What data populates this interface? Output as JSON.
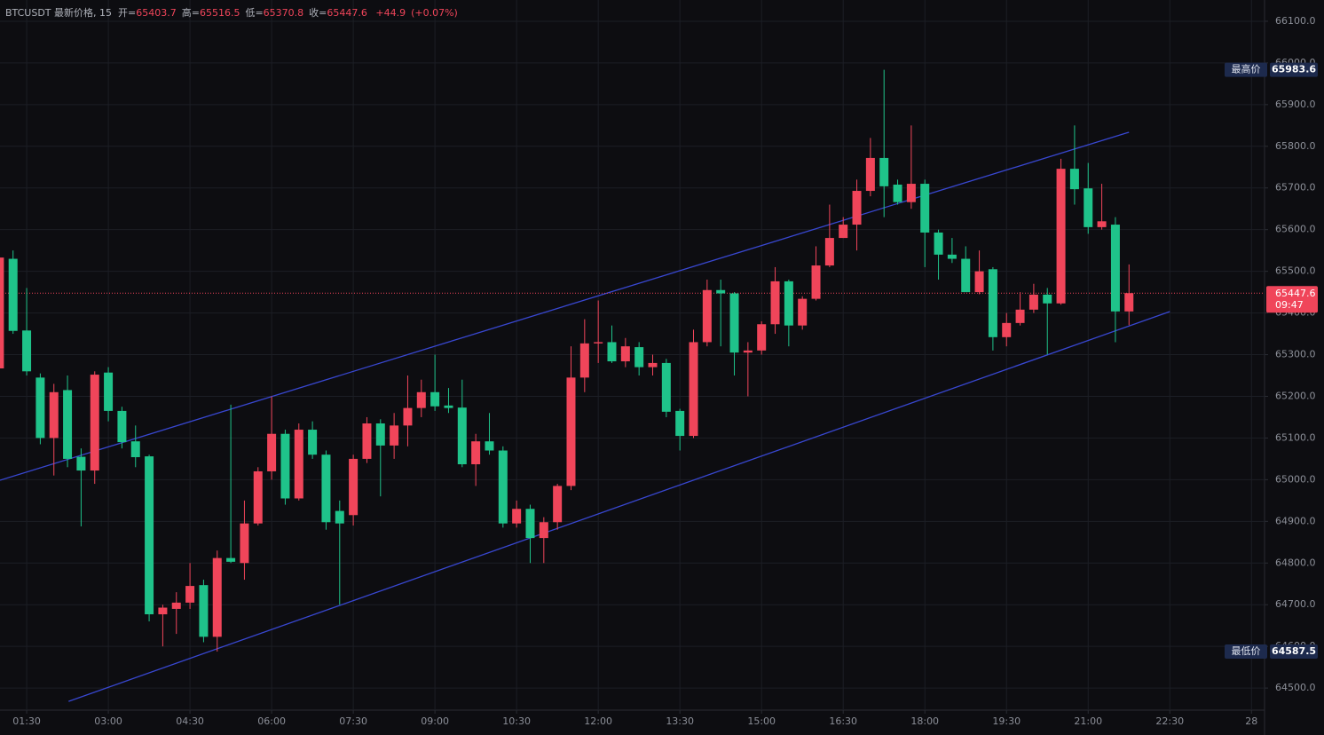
{
  "chart_data": {
    "type": "candlestick",
    "header": {
      "symbol": "BTCUSDT 最新价格, 15",
      "ohlc": [
        {
          "label": "开=",
          "value": 65403.7
        },
        {
          "label": "高=",
          "value": 65516.5
        },
        {
          "label": "低=",
          "value": 65370.8
        },
        {
          "label": "收=",
          "value": 65447.6
        }
      ],
      "change": {
        "value": 44.9,
        "label": "+44.9"
      },
      "change_pct": {
        "value": 0.07,
        "label": "(+0.07%)"
      }
    },
    "up_color": "#f0455a",
    "down_color": "#1fc38a",
    "x": [
      1,
      1.25,
      1.5,
      1.75,
      2,
      2.25,
      2.5,
      2.75,
      3,
      3.25,
      3.5,
      3.75,
      4,
      4.25,
      4.5,
      4.75,
      5,
      5.25,
      5.5,
      5.75,
      6,
      6.25,
      6.5,
      6.75,
      7,
      7.25,
      7.5,
      7.75,
      8,
      8.25,
      8.5,
      8.75,
      9,
      9.25,
      9.5,
      9.75,
      10,
      10.25,
      10.5,
      10.75,
      11,
      11.25,
      11.5,
      11.75,
      12,
      12.25,
      12.5,
      12.75,
      13,
      13.25,
      13.5,
      13.75,
      14,
      14.25,
      14.5,
      14.75,
      15,
      15.25,
      15.5,
      15.75,
      16,
      16.25,
      16.5,
      16.75,
      17,
      17.25,
      17.5,
      17.75,
      18,
      18.25,
      18.5,
      18.75,
      19,
      19.25,
      19.5,
      19.75,
      20,
      20.25,
      20.5,
      20.75,
      21,
      21.25,
      21.5,
      21.75
    ],
    "open": [
      65267,
      65530,
      65358,
      65245,
      65100,
      65215,
      65055,
      65022,
      65257,
      65165,
      65092,
      65056,
      64677,
      64690,
      64705,
      64747,
      64623,
      64812,
      64800,
      64895,
      65020,
      65110,
      64955,
      65120,
      65060,
      64925,
      64915,
      65050,
      65135,
      65082,
      65130,
      65172,
      65210,
      65178,
      65173,
      65037,
      65092,
      65070,
      64895,
      64930,
      64860,
      64898,
      64985,
      65245,
      65327,
      65330,
      65284,
      65318,
      65270,
      65280,
      65165,
      65105,
      65330,
      65455,
      65447,
      65305,
      65310,
      65373,
      65476,
      65370,
      65434,
      65514,
      65580,
      65612,
      65693,
      65772,
      65708,
      65666,
      65710,
      65593,
      65540,
      65530,
      65450,
      65505,
      65342,
      65376,
      65408,
      65444,
      65423,
      65746,
      65699,
      65606,
      65612,
      65403.7
    ],
    "high": [
      65832,
      65550,
      65460,
      65255,
      65230,
      65250,
      65075,
      65260,
      65270,
      65175,
      65130,
      65060,
      64700,
      64730,
      64800,
      64760,
      64830,
      65180,
      64950,
      65030,
      65200,
      65120,
      65135,
      65140,
      65070,
      64950,
      65060,
      65150,
      65145,
      65160,
      65250,
      65240,
      65300,
      65220,
      65240,
      65110,
      65160,
      65080,
      64950,
      64940,
      64910,
      64990,
      65320,
      65385,
      65430,
      65370,
      65340,
      65330,
      65300,
      65290,
      65170,
      65360,
      65480,
      65480,
      65450,
      65330,
      65380,
      65510,
      65480,
      65440,
      65560,
      65660,
      65630,
      65720,
      65820,
      65983.6,
      65720,
      65850,
      65720,
      65600,
      65580,
      65560,
      65550,
      65510,
      65400,
      65450,
      65470,
      65460,
      65770,
      65850,
      65760,
      65710,
      65630,
      65516.5
    ],
    "low": [
      65256,
      65350,
      65250,
      65085,
      65010,
      65030,
      64888,
      64990,
      65140,
      65075,
      65030,
      64660,
      64600,
      64630,
      64690,
      64610,
      64587.5,
      64800,
      64760,
      64890,
      65000,
      64940,
      64950,
      65050,
      64880,
      64700,
      64890,
      65040,
      64960,
      65050,
      65080,
      65150,
      65165,
      65160,
      65030,
      64985,
      65060,
      64885,
      64885,
      64800,
      64800,
      64880,
      64975,
      65210,
      65280,
      65280,
      65270,
      65250,
      65250,
      65150,
      65070,
      65100,
      65320,
      65320,
      65250,
      65200,
      65300,
      65350,
      65320,
      65360,
      65430,
      65510,
      65580,
      65550,
      65680,
      65630,
      65660,
      65650,
      65510,
      65480,
      65520,
      65450,
      65445,
      65310,
      65320,
      65370,
      65400,
      65300,
      65420,
      65660,
      65590,
      65600,
      65330,
      65370.8
    ],
    "close": [
      65533,
      65357,
      65260,
      65100,
      65210,
      65050,
      65022,
      65252,
      65165,
      65090,
      65054,
      64677,
      64693,
      64705,
      64745,
      64623,
      64812,
      64803,
      64895,
      65020,
      65110,
      64955,
      65120,
      65060,
      64898,
      64895,
      65050,
      65135,
      65082,
      65130,
      65172,
      65210,
      65176,
      65172,
      65037,
      65092,
      65070,
      64895,
      64930,
      64860,
      64898,
      64985,
      65245,
      65327,
      65330,
      65284,
      65320,
      65270,
      65280,
      65163,
      65105,
      65330,
      65455,
      65447,
      65305,
      65310,
      65373,
      65476,
      65370,
      65434,
      65514,
      65580,
      65612,
      65693,
      65772,
      65704,
      65666,
      65710,
      65593,
      65540,
      65530,
      65450,
      65500,
      65342,
      65376,
      65408,
      65444,
      65423,
      65746,
      65697,
      65606,
      65620,
      65403.7,
      65447.6
    ],
    "xlim": [
      1.01,
      24.24
    ],
    "xticks": [
      {
        "value": 1.5,
        "label": "01:30"
      },
      {
        "value": 3,
        "label": "03:00"
      },
      {
        "value": 4.5,
        "label": "04:30"
      },
      {
        "value": 6,
        "label": "06:00"
      },
      {
        "value": 7.5,
        "label": "07:30"
      },
      {
        "value": 9,
        "label": "09:00"
      },
      {
        "value": 10.5,
        "label": "10:30"
      },
      {
        "value": 12,
        "label": "12:00"
      },
      {
        "value": 13.5,
        "label": "13:30"
      },
      {
        "value": 15,
        "label": "15:00"
      },
      {
        "value": 16.5,
        "label": "16:30"
      },
      {
        "value": 18,
        "label": "18:00"
      },
      {
        "value": 19.5,
        "label": "19:30"
      },
      {
        "value": 21,
        "label": "21:00"
      },
      {
        "value": 22.5,
        "label": "22:30"
      },
      {
        "value": 24,
        "label": "28"
      }
    ],
    "ylim": [
      64447,
      66151
    ],
    "yticks": [
      {
        "value": 64500,
        "label": "64500.0"
      },
      {
        "value": 64600,
        "label": "64600.0"
      },
      {
        "value": 64700,
        "label": "64700.0"
      },
      {
        "value": 64800,
        "label": "64800.0"
      },
      {
        "value": 64900,
        "label": "64900.0"
      },
      {
        "value": 65000,
        "label": "65000.0"
      },
      {
        "value": 65100,
        "label": "65100.0"
      },
      {
        "value": 65200,
        "label": "65200.0"
      },
      {
        "value": 65300,
        "label": "65300.0"
      },
      {
        "value": 65400,
        "label": "65400.0"
      },
      {
        "value": 65500,
        "label": "65500.0"
      },
      {
        "value": 65600,
        "label": "65600.0"
      },
      {
        "value": 65700,
        "label": "65700.0"
      },
      {
        "value": 65800,
        "label": "65800.0"
      },
      {
        "value": 65900,
        "label": "65900.0"
      },
      {
        "value": 66000,
        "label": "66000.0"
      },
      {
        "value": 66100,
        "label": "66100.0"
      }
    ],
    "grid": true,
    "trendlines": [
      {
        "x": [
          1.01,
          21.75
        ],
        "y": [
          64998.6,
          65833.7
        ],
        "color": "#3847d0"
      },
      {
        "x": [
          2.27,
          22.5
        ],
        "y": [
          64468.1,
          65403.4
        ],
        "color": "#3847d0"
      }
    ],
    "high_marker": {
      "label": "最高价",
      "value": 65983.6
    },
    "low_marker": {
      "label": "最低价",
      "value": 64587.5
    },
    "last_price": {
      "value": 65447.6,
      "countdown": "09:47"
    }
  }
}
